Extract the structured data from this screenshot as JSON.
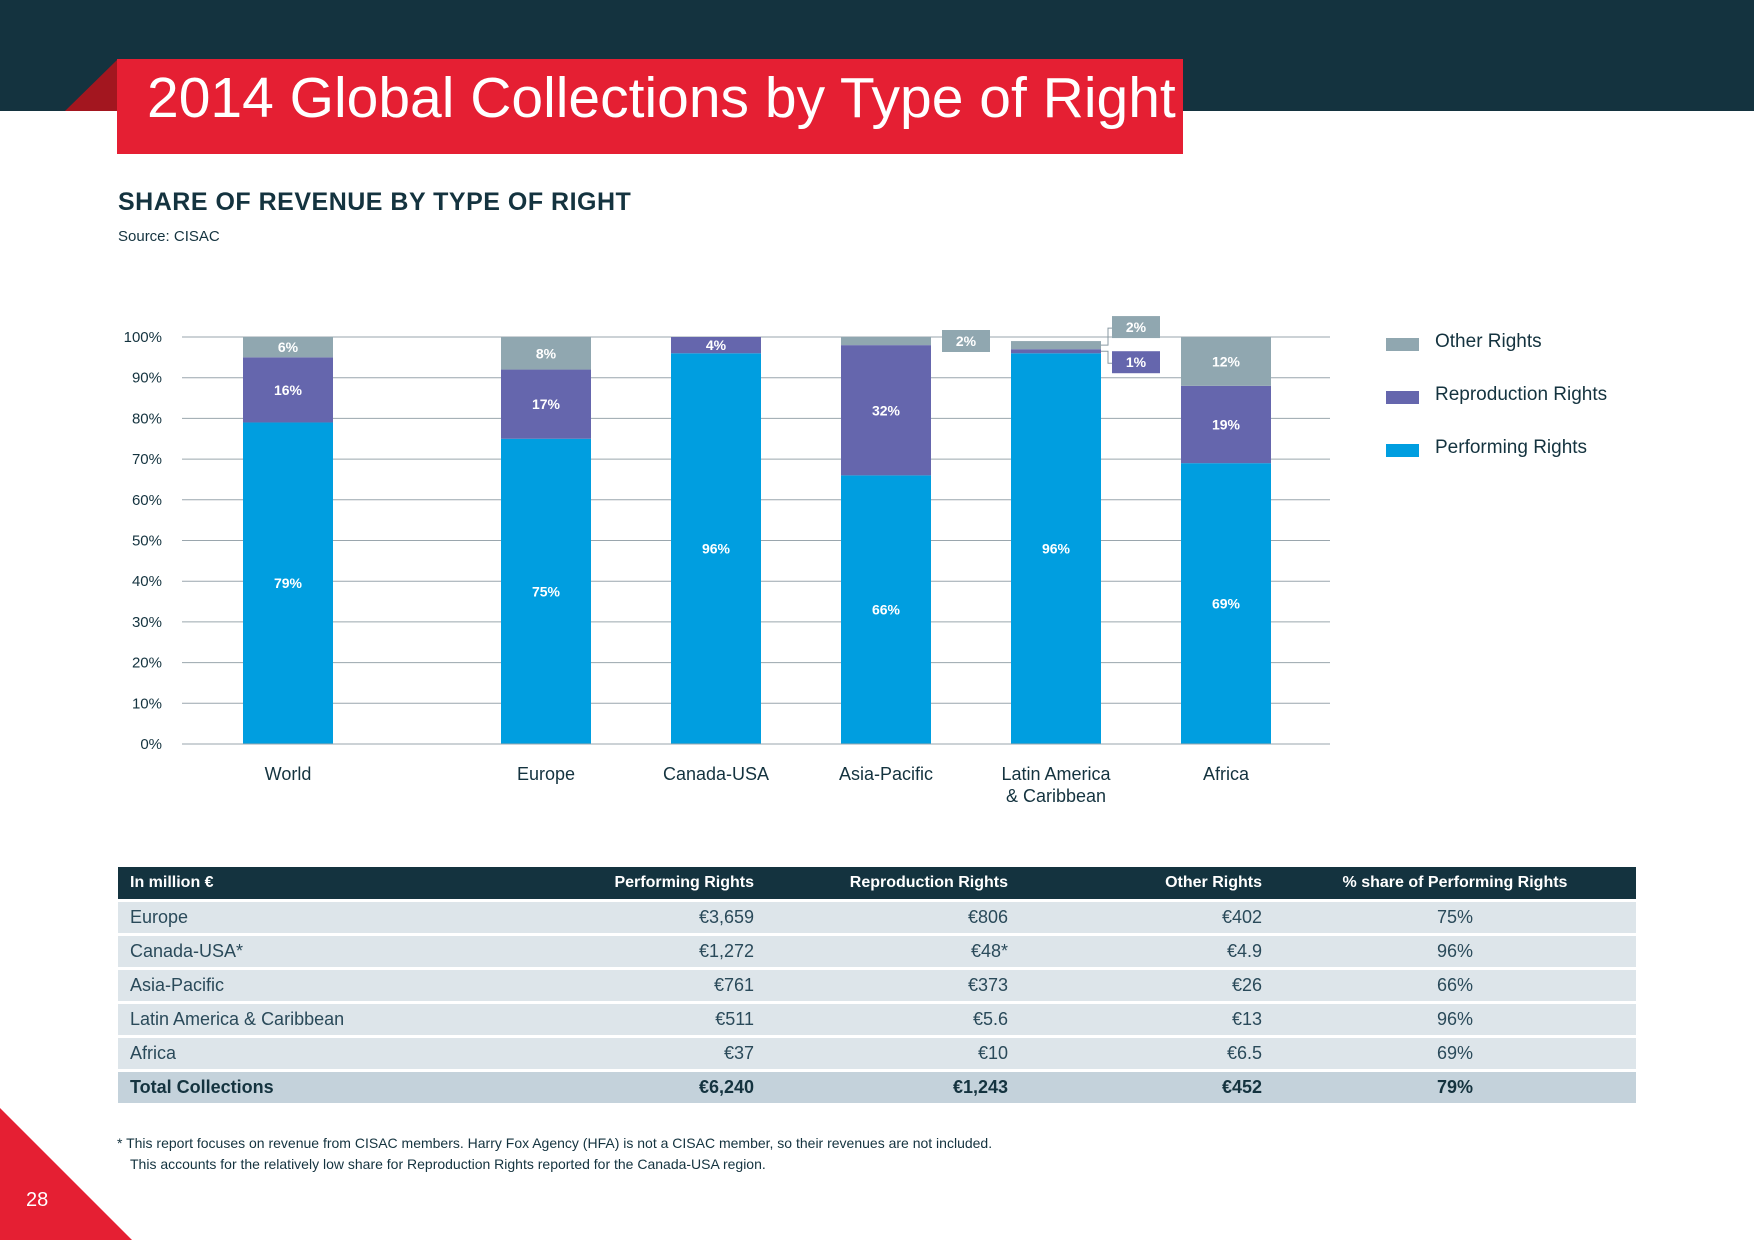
{
  "header": {
    "title": "2014 Global Collections by Type of Right"
  },
  "section": {
    "heading": "SHARE OF REVENUE BY TYPE OF RIGHT",
    "source": "Source: CISAC"
  },
  "colors": {
    "performing": "#009ee0",
    "reproduction": "#6566ad",
    "other": "#90a7b0",
    "brand": "#e51f33",
    "navy": "#14333f"
  },
  "chart_data": {
    "type": "bar",
    "stacked": true,
    "categories": [
      "World",
      "Europe",
      "Canada-USA",
      "Asia-Pacific",
      "Latin America & Caribbean",
      "Africa"
    ],
    "category_lines": [
      [
        "World"
      ],
      [
        "Europe"
      ],
      [
        "Canada-USA"
      ],
      [
        "Asia-Pacific"
      ],
      [
        "Latin America",
        "& Caribbean"
      ],
      [
        "Africa"
      ]
    ],
    "series": [
      {
        "name": "Performing Rights",
        "values": [
          79,
          75,
          96,
          66,
          96,
          69
        ],
        "labels": [
          "79%",
          "75%",
          "96%",
          "66%",
          "96%",
          "69%"
        ]
      },
      {
        "name": "Reproduction Rights",
        "values": [
          16,
          17,
          4,
          32,
          1,
          19
        ],
        "labels": [
          "16%",
          "17%",
          "4%",
          "32%",
          "1%",
          "19%"
        ]
      },
      {
        "name": "Other Rights",
        "values": [
          6,
          8,
          0,
          2,
          2,
          12
        ],
        "labels": [
          "6%",
          "8%",
          "",
          "2%",
          "2%",
          "12%"
        ]
      }
    ],
    "yticks": [
      "0%",
      "10%",
      "20%",
      "30%",
      "40%",
      "50%",
      "60%",
      "70%",
      "80%",
      "90%",
      "100%"
    ],
    "ylim": [
      0,
      100
    ],
    "legend": [
      "Other Rights",
      "Reproduction Rights",
      "Performing Rights"
    ],
    "legend_position": "right"
  },
  "table": {
    "headers": [
      "In million €",
      "Performing Rights",
      "Reproduction Rights",
      "Other Rights",
      "% share of Performing Rights"
    ],
    "rows": [
      [
        "Europe",
        "€3,659",
        "€806",
        "€402",
        "75%"
      ],
      [
        "Canada-USA*",
        "€1,272",
        "€48*",
        "€4.9",
        "96%"
      ],
      [
        "Asia-Pacific",
        "€761",
        "€373",
        "€26",
        "66%"
      ],
      [
        "Latin America & Caribbean",
        "€511",
        "€5.6",
        "€13",
        "96%"
      ],
      [
        "Africa",
        "€37",
        "€10",
        "€6.5",
        "69%"
      ]
    ],
    "total": [
      "Total Collections",
      "€6,240",
      "€1,243",
      "€452",
      "79%"
    ]
  },
  "footnote": [
    "* This report focuses on revenue from CISAC members. Harry Fox Agency (HFA) is not a CISAC member, so their revenues are not included.",
    "This accounts for the relatively low share for Reproduction Rights reported for the Canada-USA region."
  ],
  "page": {
    "number": "28"
  }
}
